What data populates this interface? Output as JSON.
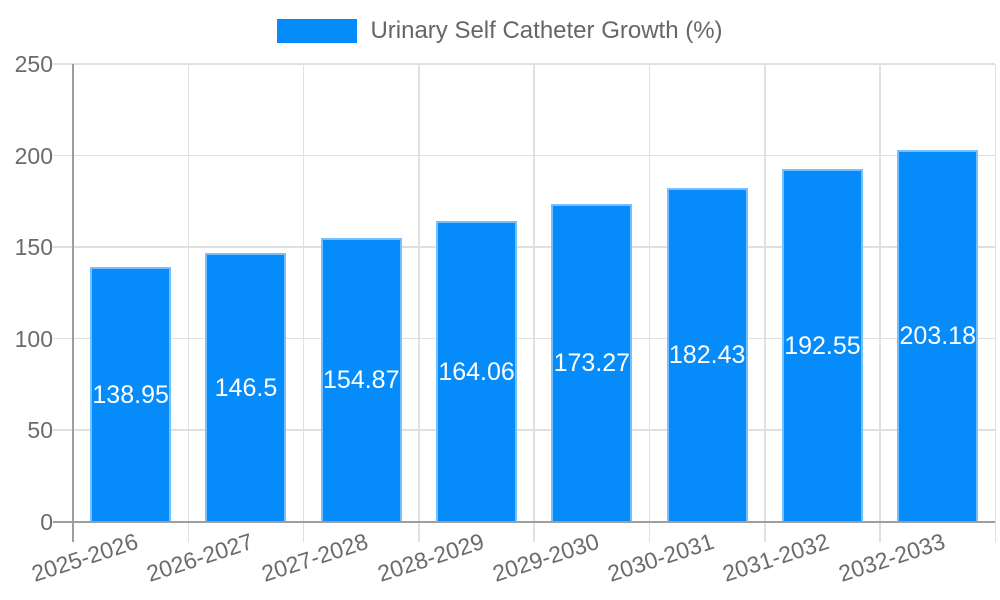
{
  "legend": {
    "label": "Urinary Self Catheter Growth (%)"
  },
  "chart_data": {
    "type": "bar",
    "title": "Urinary Self Catheter Growth (%)",
    "series_name": "Urinary Self Catheter Growth (%)",
    "categories": [
      "2025-2026",
      "2026-2027",
      "2027-2028",
      "2028-2029",
      "2029-2030",
      "2030-2031",
      "2031-2032",
      "2032-2033"
    ],
    "values": [
      138.95,
      146.5,
      154.87,
      164.06,
      173.27,
      182.43,
      192.55,
      203.18
    ],
    "ylim": [
      0,
      250
    ],
    "yticks": [
      0,
      50,
      100,
      150,
      200,
      250
    ],
    "grid": true,
    "legend_position": "top-center",
    "value_labels_inside_bars": true,
    "xlabel": "",
    "ylabel": "",
    "colors": {
      "bar": "#058CFA",
      "grid": "#e0e0e0",
      "axis": "#9e9e9e",
      "tick_text": "#6b6b6b",
      "legend_text": "#666666",
      "value_label_text": "#ffffff",
      "background": "#ffffff"
    }
  }
}
